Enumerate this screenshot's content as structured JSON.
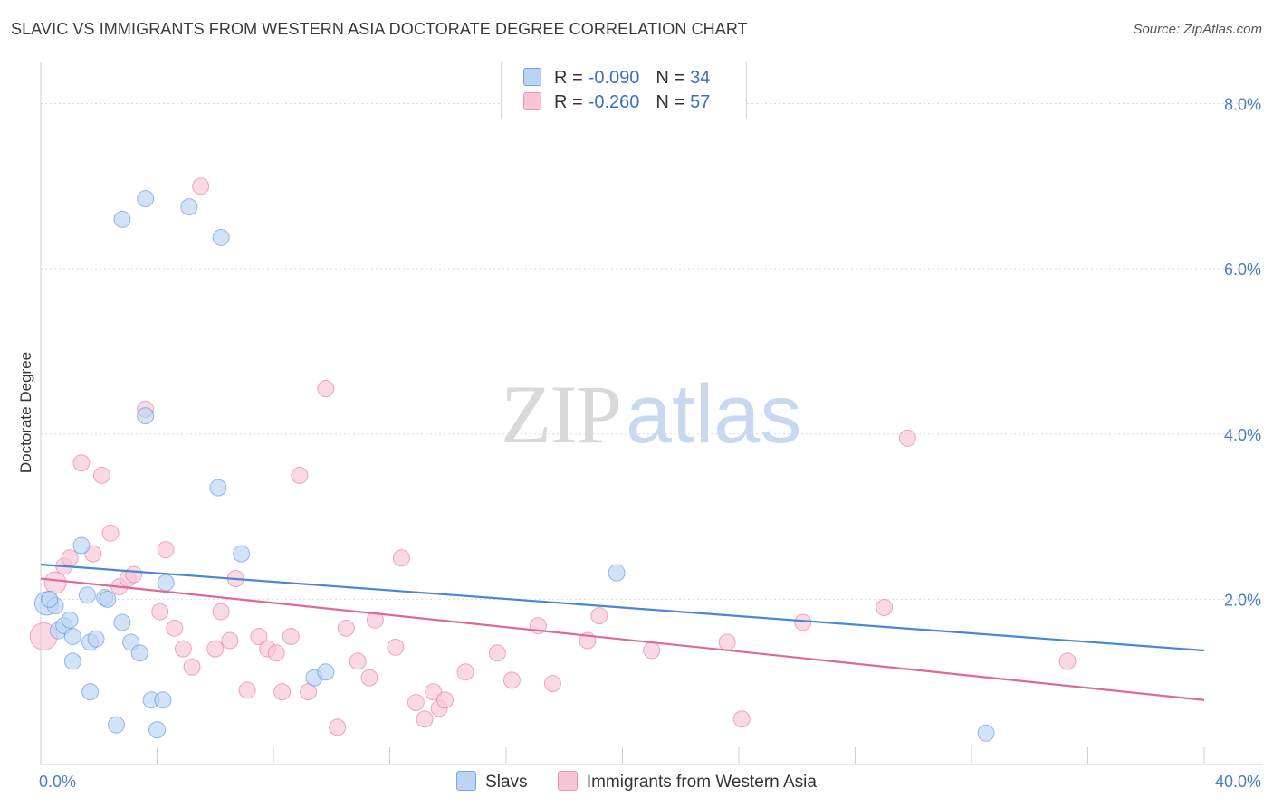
{
  "title": "SLAVIC VS IMMIGRANTS FROM WESTERN ASIA DOCTORATE DEGREE CORRELATION CHART",
  "source": "Source: ZipAtlas.com",
  "watermark": {
    "zip": "ZIP",
    "atlas": "atlas"
  },
  "legend": {
    "r_label": "R =",
    "n_label": "N =",
    "rows": [
      {
        "r": "-0.090",
        "n": "34",
        "color": "#a9c8f0"
      },
      {
        "r": "-0.260",
        "n": "57",
        "color": "#f7b8cc"
      }
    ]
  },
  "chart_data": {
    "type": "scatter",
    "title": "SLAVIC VS IMMIGRANTS FROM WESTERN ASIA DOCTORATE DEGREE CORRELATION CHART",
    "xlabel": "",
    "ylabel": "Doctorate Degree",
    "xlim": [
      0,
      40
    ],
    "ylim": [
      0,
      8.4
    ],
    "x_tick_labels": [
      "0.0%",
      "40.0%"
    ],
    "y_ticks": [
      2,
      4,
      6,
      8
    ],
    "y_tick_labels": [
      "2.0%",
      "4.0%",
      "6.0%",
      "8.0%"
    ],
    "grid": true,
    "series": [
      {
        "name": "Slavs",
        "color": "#4a86d8",
        "fill": "#bcd4f3",
        "trend": {
          "x": [
            0,
            40
          ],
          "y": [
            2.42,
            1.38
          ]
        },
        "points": [
          [
            0.2,
            1.95
          ],
          [
            0.5,
            1.92
          ],
          [
            0.6,
            1.62
          ],
          [
            0.8,
            1.68
          ],
          [
            1.0,
            1.75
          ],
          [
            1.1,
            1.55
          ],
          [
            1.1,
            1.25
          ],
          [
            1.4,
            2.65
          ],
          [
            1.6,
            2.05
          ],
          [
            1.7,
            1.48
          ],
          [
            1.9,
            1.52
          ],
          [
            2.2,
            2.02
          ],
          [
            2.3,
            2.0
          ],
          [
            2.6,
            0.48
          ],
          [
            2.8,
            1.72
          ],
          [
            2.8,
            6.6
          ],
          [
            3.1,
            1.48
          ],
          [
            3.4,
            1.35
          ],
          [
            3.6,
            4.22
          ],
          [
            3.6,
            6.85
          ],
          [
            3.8,
            0.78
          ],
          [
            4.0,
            0.42
          ],
          [
            4.3,
            2.2
          ],
          [
            5.1,
            6.75
          ],
          [
            6.1,
            3.35
          ],
          [
            6.2,
            6.38
          ],
          [
            6.9,
            2.55
          ],
          [
            9.4,
            1.05
          ],
          [
            9.8,
            1.12
          ],
          [
            19.8,
            2.32
          ],
          [
            32.5,
            0.38
          ],
          [
            0.3,
            2.0
          ],
          [
            1.7,
            0.88
          ],
          [
            4.2,
            0.78
          ]
        ]
      },
      {
        "name": "Immigrants from Western Asia",
        "color": "#e0679a",
        "fill": "#f8c5d6",
        "trend": {
          "x": [
            0,
            40
          ],
          "y": [
            2.25,
            0.78
          ]
        },
        "points": [
          [
            0.1,
            1.55
          ],
          [
            0.5,
            2.2
          ],
          [
            0.8,
            2.4
          ],
          [
            1.0,
            2.5
          ],
          [
            1.4,
            3.65
          ],
          [
            1.8,
            2.55
          ],
          [
            2.1,
            3.5
          ],
          [
            2.4,
            2.8
          ],
          [
            2.7,
            2.15
          ],
          [
            3.0,
            2.25
          ],
          [
            3.2,
            2.3
          ],
          [
            3.6,
            4.3
          ],
          [
            4.1,
            1.85
          ],
          [
            4.3,
            2.6
          ],
          [
            4.6,
            1.65
          ],
          [
            4.9,
            1.4
          ],
          [
            5.2,
            1.18
          ],
          [
            5.5,
            7.0
          ],
          [
            6.0,
            1.4
          ],
          [
            6.2,
            1.85
          ],
          [
            6.5,
            1.5
          ],
          [
            6.7,
            2.25
          ],
          [
            7.1,
            0.9
          ],
          [
            7.5,
            1.55
          ],
          [
            7.8,
            1.4
          ],
          [
            8.1,
            1.35
          ],
          [
            8.3,
            0.88
          ],
          [
            8.6,
            1.55
          ],
          [
            8.9,
            3.5
          ],
          [
            9.2,
            0.88
          ],
          [
            9.8,
            4.55
          ],
          [
            10.2,
            0.45
          ],
          [
            10.5,
            1.65
          ],
          [
            10.9,
            1.25
          ],
          [
            11.3,
            1.05
          ],
          [
            11.5,
            1.75
          ],
          [
            12.2,
            1.42
          ],
          [
            12.4,
            2.5
          ],
          [
            12.9,
            0.75
          ],
          [
            13.2,
            0.55
          ],
          [
            13.5,
            0.88
          ],
          [
            13.7,
            0.68
          ],
          [
            13.9,
            0.78
          ],
          [
            14.6,
            1.12
          ],
          [
            15.7,
            1.35
          ],
          [
            16.2,
            1.02
          ],
          [
            17.1,
            1.68
          ],
          [
            17.6,
            0.98
          ],
          [
            18.8,
            1.5
          ],
          [
            19.2,
            1.8
          ],
          [
            21.0,
            1.38
          ],
          [
            23.6,
            1.48
          ],
          [
            24.1,
            0.55
          ],
          [
            26.2,
            1.72
          ],
          [
            29.0,
            1.9
          ],
          [
            29.8,
            3.95
          ],
          [
            35.3,
            1.25
          ]
        ]
      }
    ]
  }
}
